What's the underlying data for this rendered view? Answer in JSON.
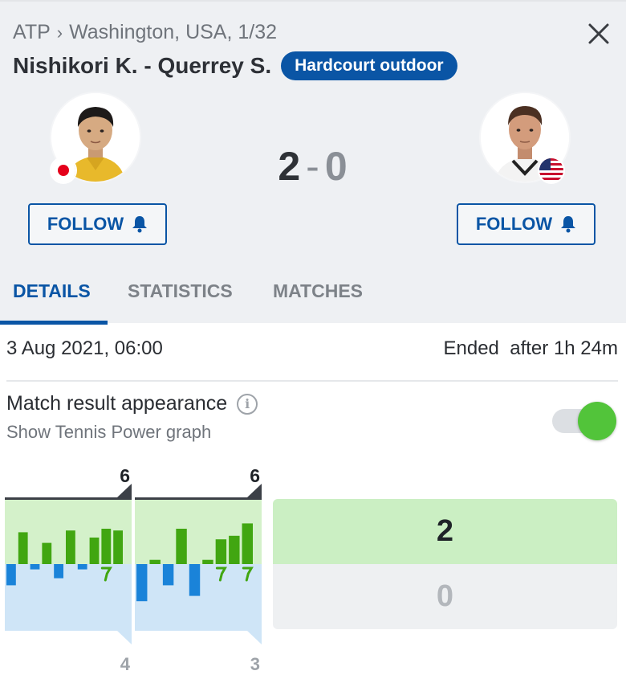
{
  "breadcrumb": {
    "tour": "ATP",
    "separator": "›",
    "event": "Washington, USA, 1/32"
  },
  "match": {
    "title": "Nishikori K. - Querrey S.",
    "surface": "Hardcourt outdoor",
    "score_home": "2",
    "score_separator": "-",
    "score_away": "0"
  },
  "follow_buttons": {
    "home_label": "FOLLOW",
    "away_label": "FOLLOW"
  },
  "tabs": [
    {
      "label": "DETAILS",
      "active": true
    },
    {
      "label": "STATISTICS",
      "active": false
    },
    {
      "label": "MATCHES",
      "active": false
    }
  ],
  "info": {
    "datetime": "3 Aug 2021, 06:00",
    "status": "Ended",
    "duration": "after 1h 24m"
  },
  "settings": {
    "title": "Match result appearance",
    "info_icon_glyph": "i",
    "subtitle": "Show Tennis Power graph",
    "toggle_on": true
  },
  "colors": {
    "accent": "#0a55a5",
    "home_bar": "#41a611",
    "away_bar": "#1a83d9",
    "home_area": "#d4f1ca",
    "away_area": "#cfe5f7",
    "toggle_on": "#52c43a"
  },
  "chart_data": {
    "type": "bar",
    "title": "",
    "sets": [
      {
        "home_games": "6",
        "away_games": "4",
        "bars": [
          {
            "side": "away",
            "value": 0.6,
            "break": false
          },
          {
            "side": "home",
            "value": 0.9,
            "break": false
          },
          {
            "side": "away",
            "value": 0.15,
            "break": false
          },
          {
            "side": "home",
            "value": 0.6,
            "break": false
          },
          {
            "side": "away",
            "value": 0.4,
            "break": false
          },
          {
            "side": "home",
            "value": 0.95,
            "break": false
          },
          {
            "side": "away",
            "value": 0.15,
            "break": false
          },
          {
            "side": "home",
            "value": 0.75,
            "break": false
          },
          {
            "side": "home",
            "value": 1.0,
            "break": true
          },
          {
            "side": "home",
            "value": 0.95,
            "break": false
          }
        ]
      },
      {
        "home_games": "6",
        "away_games": "3",
        "bars": [
          {
            "side": "away",
            "value": 1.05,
            "break": false
          },
          {
            "side": "home",
            "value": 0.12,
            "break": false
          },
          {
            "side": "away",
            "value": 0.6,
            "break": false
          },
          {
            "side": "home",
            "value": 1.0,
            "break": false
          },
          {
            "side": "away",
            "value": 0.9,
            "break": false
          },
          {
            "side": "home",
            "value": 0.12,
            "break": false
          },
          {
            "side": "home",
            "value": 0.7,
            "break": true
          },
          {
            "side": "home",
            "value": 0.8,
            "break": false
          },
          {
            "side": "home",
            "value": 1.15,
            "break": true
          }
        ]
      }
    ],
    "totals": {
      "home": "2",
      "away": "0"
    }
  }
}
